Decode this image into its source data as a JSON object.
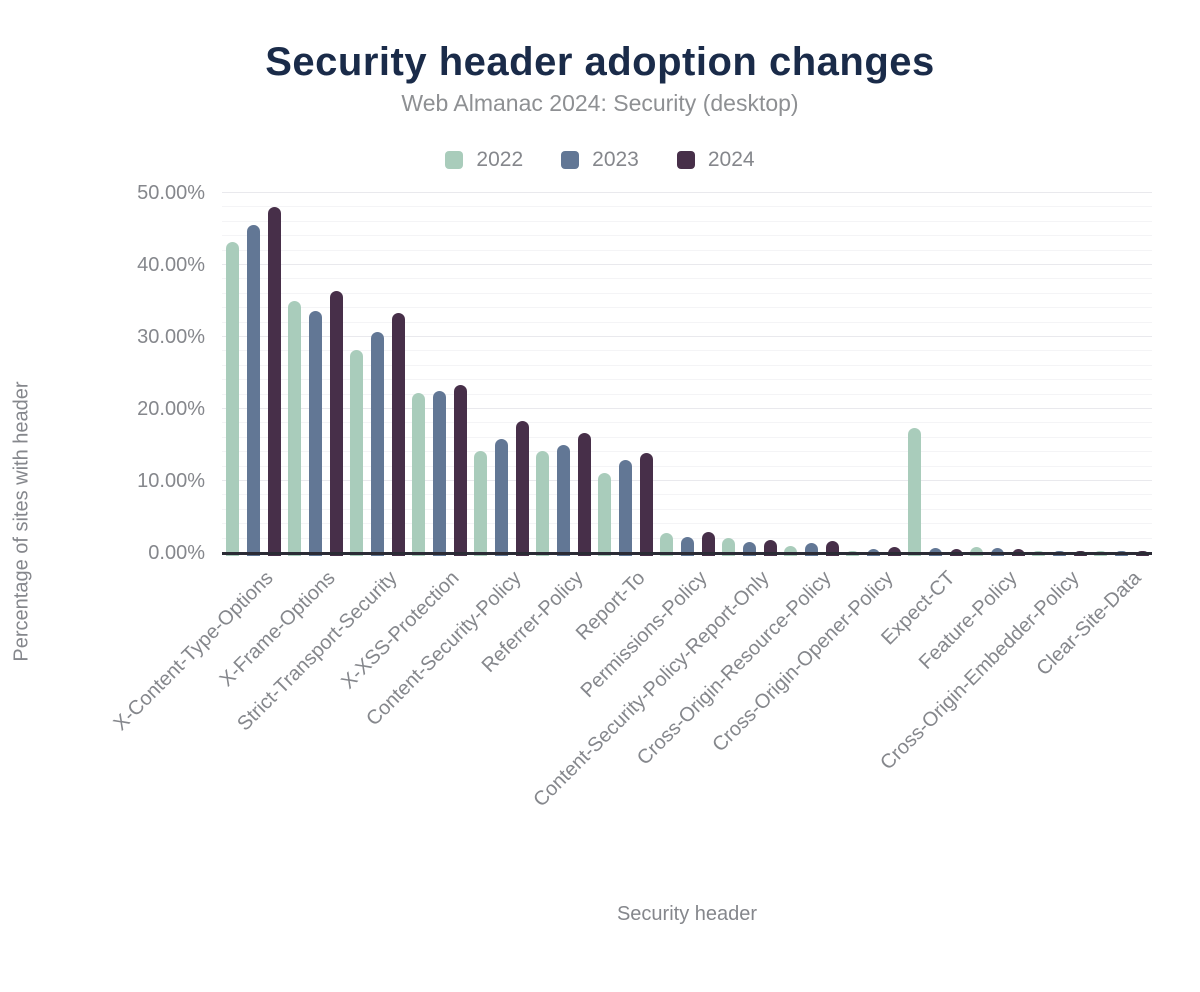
{
  "chart_data": {
    "type": "bar",
    "title": "Security header adoption changes",
    "subtitle": "Web Almanac 2024: Security (desktop)",
    "xlabel": "Security header",
    "ylabel": "Percentage of sites with header",
    "ylim": [
      0,
      50
    ],
    "yticks": [
      "0.00%",
      "10.00%",
      "20.00%",
      "30.00%",
      "40.00%",
      "50.00%"
    ],
    "grid": {
      "minor_step_pct": 2,
      "major_step_pct": 10,
      "gridlines": "on"
    },
    "legend_position": "top-center",
    "categories": [
      "X-Content-Type-Options",
      "X-Frame-Options",
      "Strict-Transport-Security",
      "X-XSS-Protection",
      "Content-Security-Policy",
      "Referrer-Policy",
      "Report-To",
      "Permissions-Policy",
      "Content-Security-Policy-Report-Only",
      "Cross-Origin-Resource-Policy",
      "Cross-Origin-Opener-Policy",
      "Expect-CT",
      "Feature-Policy",
      "Cross-Origin-Embedder-Policy",
      "Clear-Site-Data"
    ],
    "series": [
      {
        "name": "2022",
        "color": "#a9ccbb",
        "values": [
          43.2,
          35.0,
          28.2,
          22.2,
          14.2,
          14.2,
          11.1,
          2.8,
          2.1,
          1.0,
          0.2,
          17.4,
          0.8,
          0.1,
          0.1
        ]
      },
      {
        "name": "2023",
        "color": "#627795",
        "values": [
          45.5,
          33.6,
          30.7,
          22.5,
          15.8,
          15.0,
          12.9,
          2.2,
          1.5,
          1.4,
          0.6,
          0.7,
          0.7,
          0.1,
          0.1
        ]
      },
      {
        "name": "2024",
        "color": "#472f49",
        "values": [
          48.1,
          36.4,
          33.4,
          23.4,
          18.3,
          16.7,
          13.9,
          2.9,
          1.8,
          1.7,
          0.8,
          0.6,
          0.6,
          0.3,
          0.2
        ]
      }
    ],
    "colors": {
      "title": "#1a2b49",
      "axis_text": "#85878c",
      "axis_line": "#2b2b35",
      "gridline_minor": "#f4f4f6",
      "gridline_major": "#e9e9ed",
      "background": "#ffffff"
    }
  }
}
